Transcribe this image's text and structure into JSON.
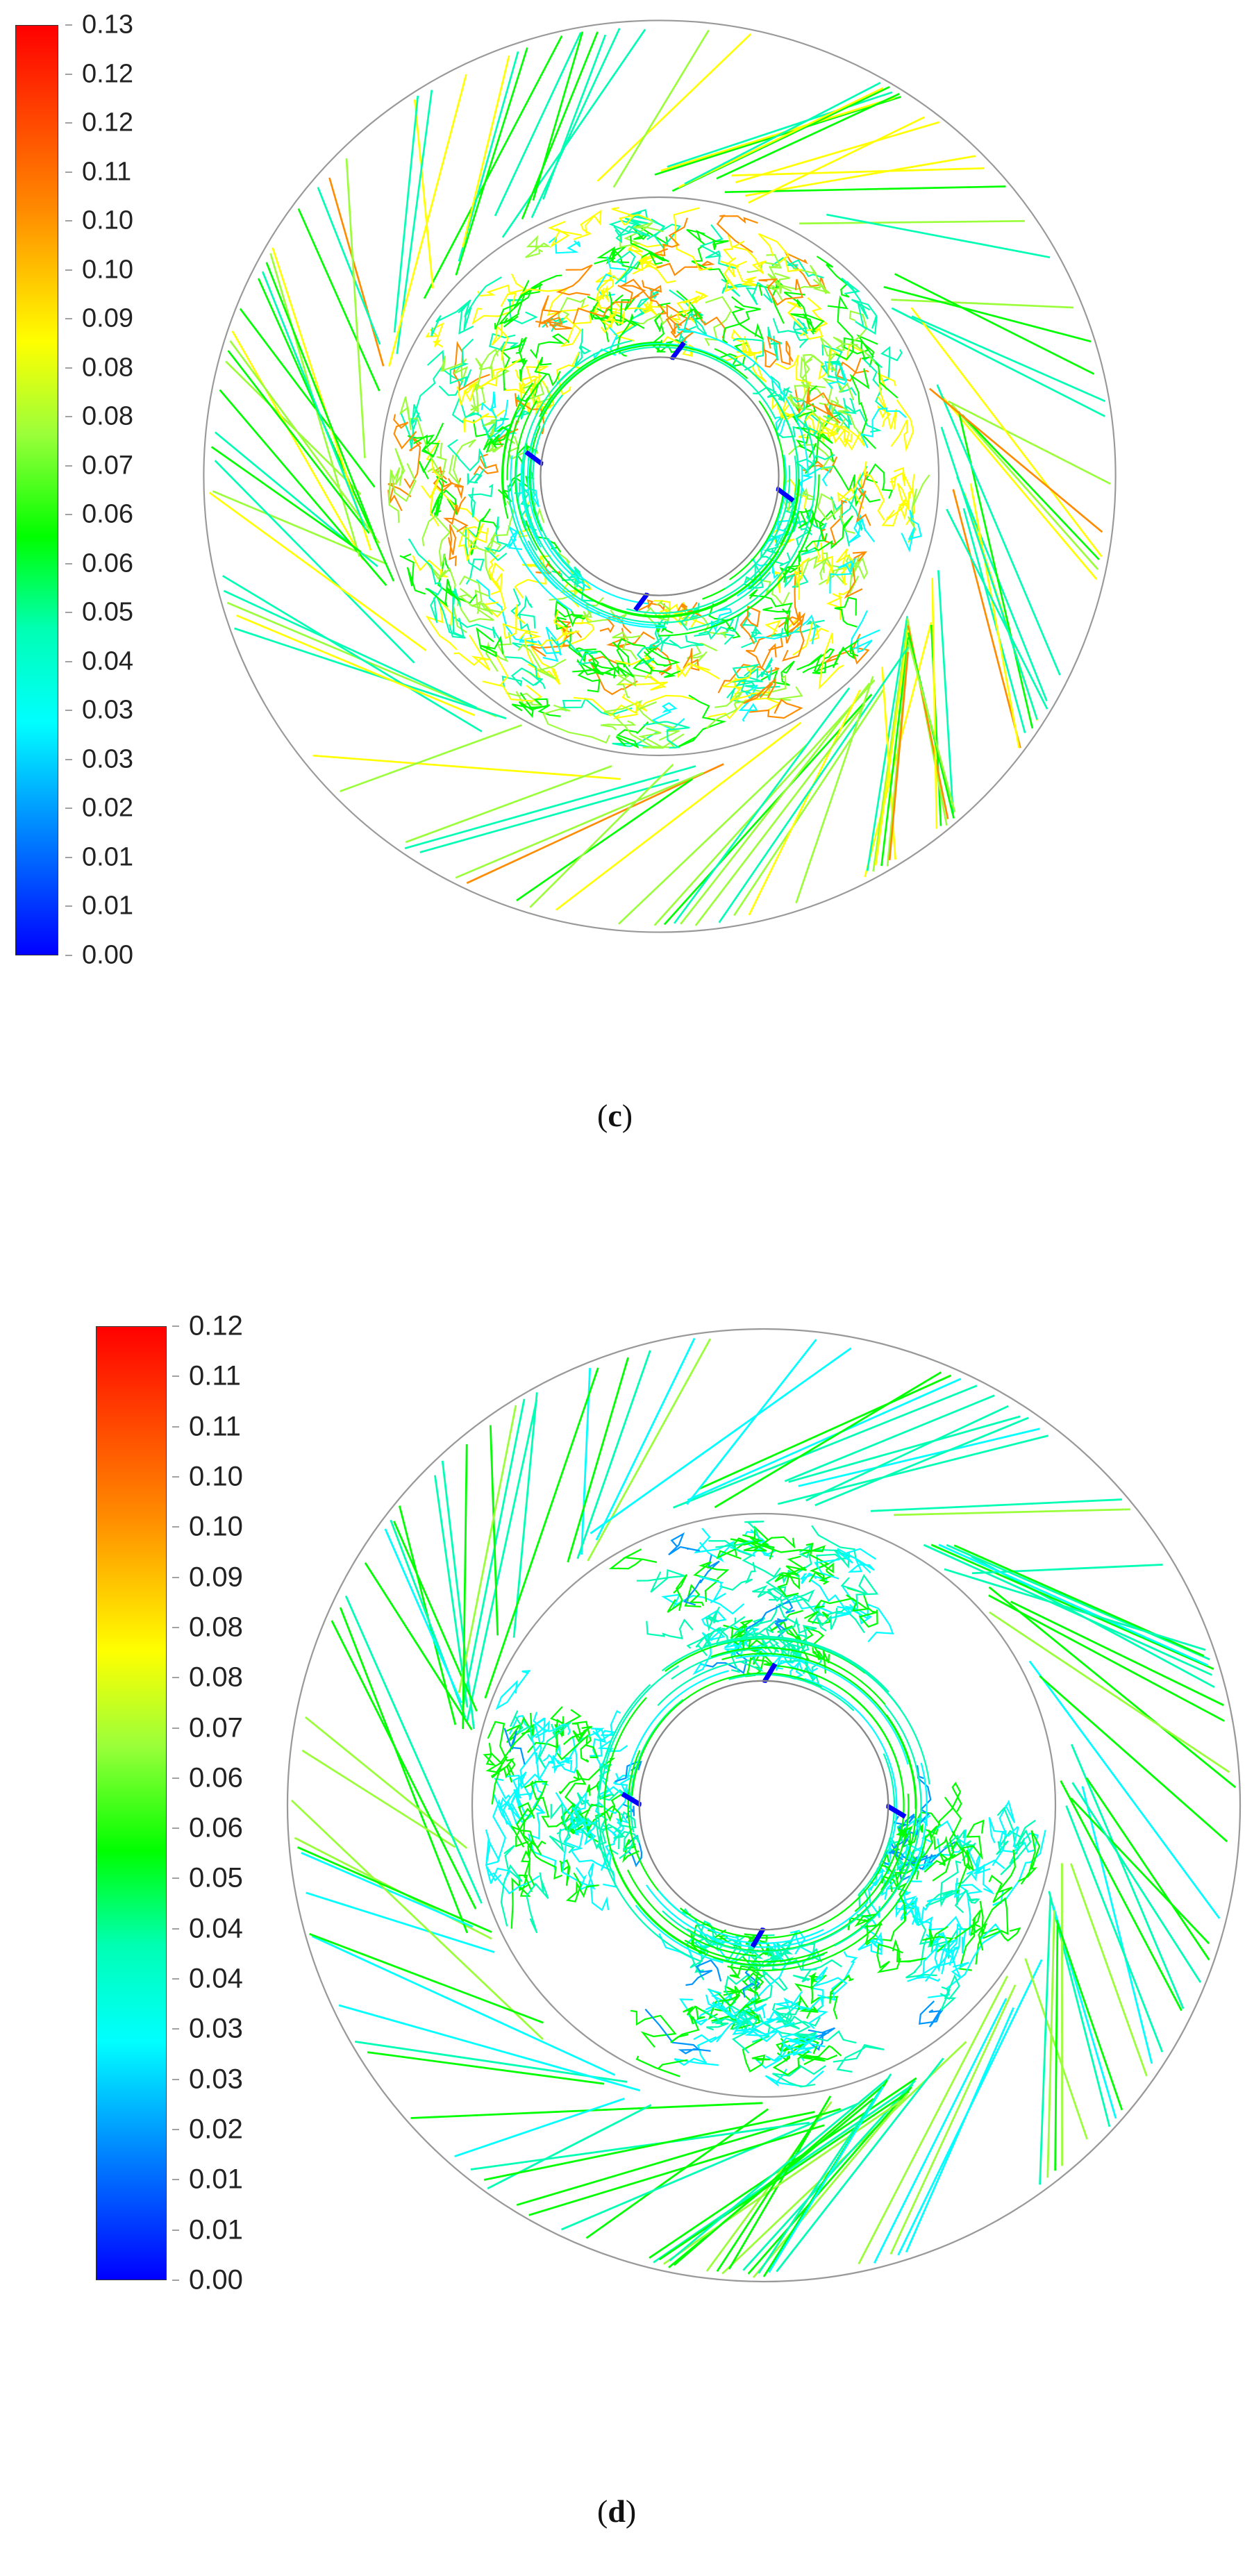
{
  "panels": [
    {
      "caption_open": "(",
      "caption_letter": "c",
      "caption_close": ")",
      "colorbar_ticks": [
        "0.13",
        "0.12",
        "0.12",
        "0.11",
        "0.10",
        "0.10",
        "0.09",
        "0.08",
        "0.08",
        "0.07",
        "0.06",
        "0.06",
        "0.05",
        "0.04",
        "0.03",
        "0.03",
        "0.02",
        "0.01",
        "0.01",
        "0.00"
      ],
      "streamline_vane_angle_deg": -25,
      "blade_count": 4,
      "seed": 7
    },
    {
      "caption_open": "(",
      "caption_letter": "d",
      "caption_close": ")",
      "colorbar_ticks": [
        "0.12",
        "0.11",
        "0.11",
        "0.10",
        "0.10",
        "0.09",
        "0.08",
        "0.08",
        "0.07",
        "0.06",
        "0.06",
        "0.05",
        "0.04",
        "0.04",
        "0.03",
        "0.03",
        "0.02",
        "0.01",
        "0.01",
        "0.00"
      ],
      "streamline_vane_angle_deg": -30,
      "blade_count": 4,
      "seed": 19
    }
  ],
  "colorscale": [
    "#0000ff",
    "#0096ff",
    "#00ffff",
    "#00ffb4",
    "#00ff00",
    "#9aff3a",
    "#ffff00",
    "#ff8c00",
    "#ff0000"
  ]
}
